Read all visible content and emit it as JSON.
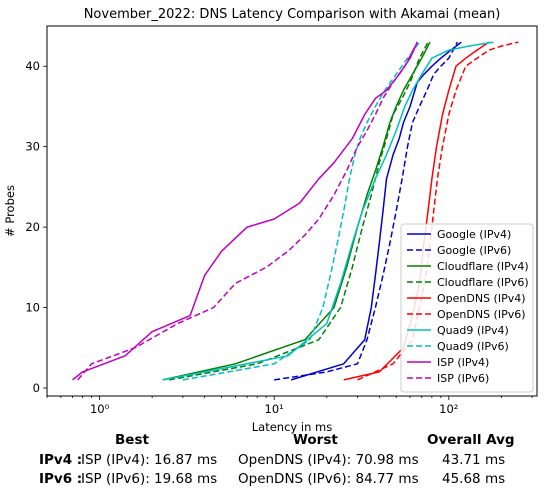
{
  "chart_data": {
    "type": "line",
    "title": "November_2022: DNS Latency Comparison with Akamai (mean)",
    "xlabel": "Latency in ms",
    "ylabel": "# Probes",
    "xscale": "log",
    "xlim": [
      0.5,
      320
    ],
    "ylim": [
      -1,
      45
    ],
    "xticks": [
      {
        "value": 1,
        "label": "10⁰"
      },
      {
        "value": 10,
        "label": "10¹"
      },
      {
        "value": 100,
        "label": "10²"
      }
    ],
    "yticks": [
      0,
      10,
      20,
      30,
      40
    ],
    "grid": false,
    "legend_position": "lower-right",
    "series": [
      {
        "name": "Google (IPv4)",
        "color": "#0000cc",
        "dash": "solid",
        "x": [
          12.5,
          25,
          33,
          36,
          38,
          40,
          42,
          44,
          48,
          52,
          55,
          60,
          66,
          72,
          80,
          90,
          103,
          118
        ],
        "y": [
          1,
          3,
          6,
          10,
          14,
          18,
          22,
          26,
          29,
          31,
          33,
          35,
          38,
          39,
          40,
          41,
          42,
          43
        ]
      },
      {
        "name": "Google (IPv6)",
        "color": "#0000cc",
        "dash": "dashed",
        "x": [
          10,
          20,
          30,
          34,
          38,
          42,
          46,
          50,
          54,
          58,
          62,
          68,
          75,
          82,
          90,
          100,
          112
        ],
        "y": [
          1,
          2,
          3,
          6,
          10,
          14,
          18,
          22,
          26,
          30,
          33,
          35,
          37,
          39,
          40,
          41,
          43
        ]
      },
      {
        "name": "Cloudflare (IPv4)",
        "color": "#008000",
        "dash": "solid",
        "x": [
          2.3,
          6,
          15,
          22,
          26,
          30,
          34,
          38,
          42,
          46,
          50,
          55,
          62,
          70,
          78
        ],
        "y": [
          1,
          3,
          6,
          10,
          15,
          20,
          24,
          27,
          30,
          33,
          35,
          37,
          39,
          41,
          43
        ]
      },
      {
        "name": "Cloudflare (IPv6)",
        "color": "#008000",
        "dash": "dashed",
        "x": [
          2.5,
          8,
          18,
          24,
          28,
          32,
          36,
          40,
          44,
          48,
          54,
          60,
          68,
          76
        ],
        "y": [
          1,
          3,
          6,
          10,
          15,
          20,
          24,
          28,
          31,
          34,
          36,
          38,
          41,
          43
        ]
      },
      {
        "name": "OpenDNS (IPv4)",
        "color": "#ff0000",
        "dash": "solid",
        "x": [
          25,
          40,
          55,
          62,
          68,
          72,
          76,
          80,
          85,
          92,
          100,
          110,
          125,
          145,
          170
        ],
        "y": [
          1,
          2,
          5,
          9,
          13,
          18,
          22,
          26,
          30,
          34,
          37,
          40,
          41,
          42,
          43
        ]
      },
      {
        "name": "OpenDNS (IPv6)",
        "color": "#ff0000",
        "dash": "dashed",
        "x": [
          30,
          48,
          62,
          68,
          74,
          78,
          82,
          86,
          92,
          100,
          110,
          125,
          145,
          170,
          200,
          250
        ],
        "y": [
          1,
          3,
          6,
          10,
          14,
          18,
          22,
          26,
          30,
          34,
          37,
          40,
          41,
          42,
          42.5,
          43
        ]
      },
      {
        "name": "Quad9 (IPv4)",
        "color": "#00bfbf",
        "dash": "solid",
        "x": [
          2.3,
          4,
          12,
          20,
          24,
          28,
          32,
          38,
          44,
          50,
          56,
          62,
          70,
          80,
          100,
          130,
          180
        ],
        "y": [
          1,
          2,
          4,
          8,
          13,
          18,
          22,
          26,
          29,
          32,
          35,
          37,
          39,
          41,
          42,
          42.5,
          43
        ]
      },
      {
        "name": "Quad9 (IPv6)",
        "color": "#00bfbf",
        "dash": "dashed",
        "x": [
          3,
          10,
          16,
          19,
          21,
          23,
          25,
          27,
          29,
          31,
          34,
          38,
          43,
          50,
          58,
          68
        ],
        "y": [
          1,
          3,
          6,
          10,
          14,
          18,
          22,
          26,
          29,
          31,
          33,
          35,
          37,
          39,
          41,
          43
        ]
      },
      {
        "name": "ISP (IPv4)",
        "color": "#bf00bf",
        "dash": "solid",
        "x": [
          0.7,
          0.8,
          1.4,
          2.0,
          3.3,
          4.0,
          5.0,
          7.0,
          10,
          14,
          18,
          22,
          28,
          33,
          38,
          44,
          52,
          60,
          66
        ],
        "y": [
          1,
          2,
          4,
          7,
          9,
          14,
          17,
          20,
          21,
          23,
          26,
          28,
          31,
          34,
          36,
          37,
          39,
          41,
          43
        ]
      },
      {
        "name": "ISP (IPv6)",
        "color": "#bf00bf",
        "dash": "dashed",
        "x": [
          0.75,
          0.9,
          1.6,
          2.8,
          4.5,
          6,
          9,
          12,
          15,
          18,
          22,
          26,
          30,
          34,
          38,
          42,
          48,
          56,
          66
        ],
        "y": [
          1,
          3,
          5,
          8,
          10,
          13,
          15,
          17,
          19,
          21,
          24,
          27,
          30,
          32,
          34,
          36,
          38,
          40,
          43
        ]
      }
    ],
    "summary": {
      "headers": {
        "best": "Best",
        "worst": "Worst",
        "avg": "Overall Avg"
      },
      "rows": [
        {
          "label": "IPv4 :",
          "best": "ISP (IPv4): 16.87 ms",
          "worst": "OpenDNS (IPv4): 70.98 ms",
          "avg": "43.71 ms"
        },
        {
          "label": "IPv6 :",
          "best": "ISP (IPv6): 19.68 ms",
          "worst": "OpenDNS (IPv6): 84.77 ms",
          "avg": "45.68 ms"
        }
      ]
    }
  }
}
